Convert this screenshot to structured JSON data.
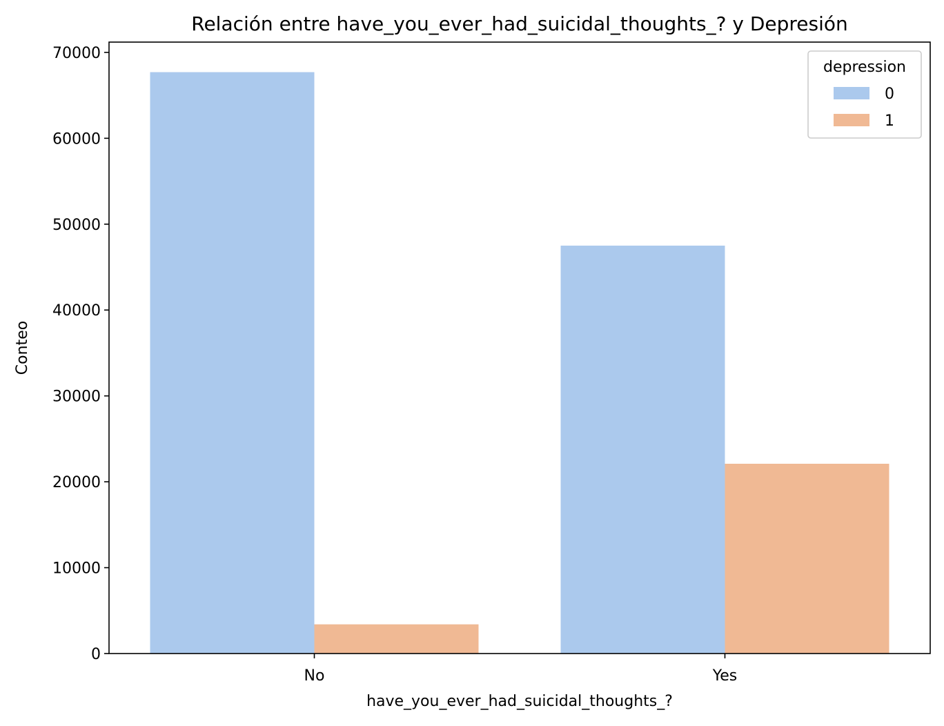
{
  "chart_data": {
    "type": "bar",
    "title": "Relación entre have_you_ever_had_suicidal_thoughts_? y Depresión",
    "xlabel": "have_you_ever_had_suicidal_thoughts_?",
    "ylabel": "Conteo",
    "categories": [
      "No",
      "Yes"
    ],
    "series": [
      {
        "name": "0",
        "values": [
          67700,
          47500
        ],
        "color": "#abc9ed"
      },
      {
        "name": "1",
        "values": [
          3400,
          22100
        ],
        "color": "#f0b994"
      }
    ],
    "ylim": [
      0,
      71200
    ],
    "yticks": [
      0,
      10000,
      20000,
      30000,
      40000,
      50000,
      60000,
      70000
    ],
    "ytick_labels": [
      "0",
      "10000",
      "20000",
      "30000",
      "40000",
      "50000",
      "60000",
      "70000"
    ],
    "grid": false,
    "legend": {
      "title": "depression",
      "placement": "top-right"
    }
  }
}
